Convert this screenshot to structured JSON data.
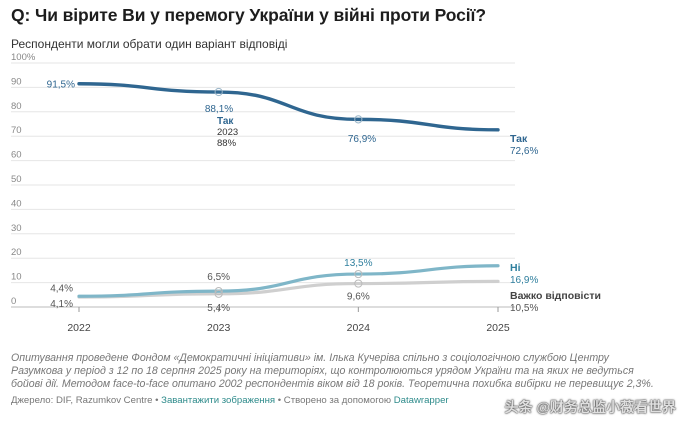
{
  "title": "Q: Чи вірите Ви у перемогу України у війні проти Росії?",
  "subtitle": "Респонденти могли обрати один варіант відповіді",
  "chart_data": {
    "type": "line",
    "x": [
      "2022",
      "2023",
      "2024",
      "2025"
    ],
    "ylim": [
      0,
      100
    ],
    "y_ticks": [
      "0",
      "10",
      "20",
      "30",
      "40",
      "50",
      "60",
      "70",
      "80",
      "90",
      "100%"
    ],
    "grid": true,
    "series": [
      {
        "name": "Так",
        "values": [
          91.5,
          88.1,
          76.9,
          72.6
        ],
        "labels": [
          "91,5%",
          "88,1%",
          "76,9%",
          "72,6%"
        ],
        "color": "#2f6690"
      },
      {
        "name": "Ні",
        "values": [
          4.4,
          6.5,
          13.5,
          16.9
        ],
        "labels": [
          "4,4%",
          "6,5%",
          "13,5%",
          "16,9%"
        ],
        "color": "#7fb6c8"
      },
      {
        "name": "Важко відповісти",
        "values": [
          4.1,
          5.4,
          9.6,
          10.5
        ],
        "labels": [
          "4,1%",
          "5,4%",
          "9,6%",
          "10,5%"
        ],
        "color": "#cfcfcf"
      }
    ],
    "annotation": {
      "lines": [
        "Так",
        "2023",
        "88%"
      ]
    }
  },
  "note": "Опитування проведене Фондом «Демократичні ініціативи» ім. Ілька Кучеріва спільно з соціологічною службою Центру Разумкова у період з 12 по 18 серпня 2025 року на територіях, що контролюються урядом України та на яких не ведуться бойові дії. Методом face-to-face опитано 2002 респондентів віком від 18 років. Теоретична похибка вибірки не перевищує 2,3%.",
  "source": {
    "prefix": "Джерело: DIF, Razumkov Centre • ",
    "download": "Завантажити зображення",
    "middle": " • Створено за допомогою ",
    "tool": "Datawrapper"
  },
  "watermark": "头条 @财务总监小薇看世界"
}
